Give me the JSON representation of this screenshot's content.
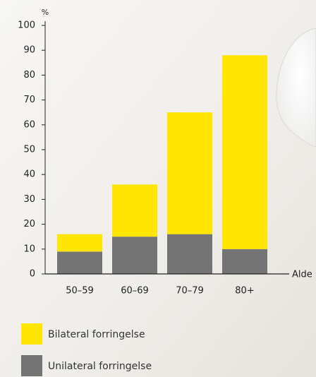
{
  "chart_data": {
    "type": "bar",
    "stacked": true,
    "y_label": "%",
    "x_label": "Alde",
    "categories": [
      "50–59",
      "60–69",
      "70–79",
      "80+"
    ],
    "series": [
      {
        "name": "Bilateral forringelse",
        "color": "#ffe600",
        "values": [
          7,
          21,
          49,
          78
        ]
      },
      {
        "name": "Unilateral forringelse",
        "color": "#747474",
        "values": [
          9,
          15,
          16,
          10
        ]
      }
    ],
    "ylim": [
      0,
      100
    ],
    "yticks": [
      0,
      10,
      20,
      30,
      40,
      50,
      60,
      70,
      80,
      90,
      100
    ]
  }
}
